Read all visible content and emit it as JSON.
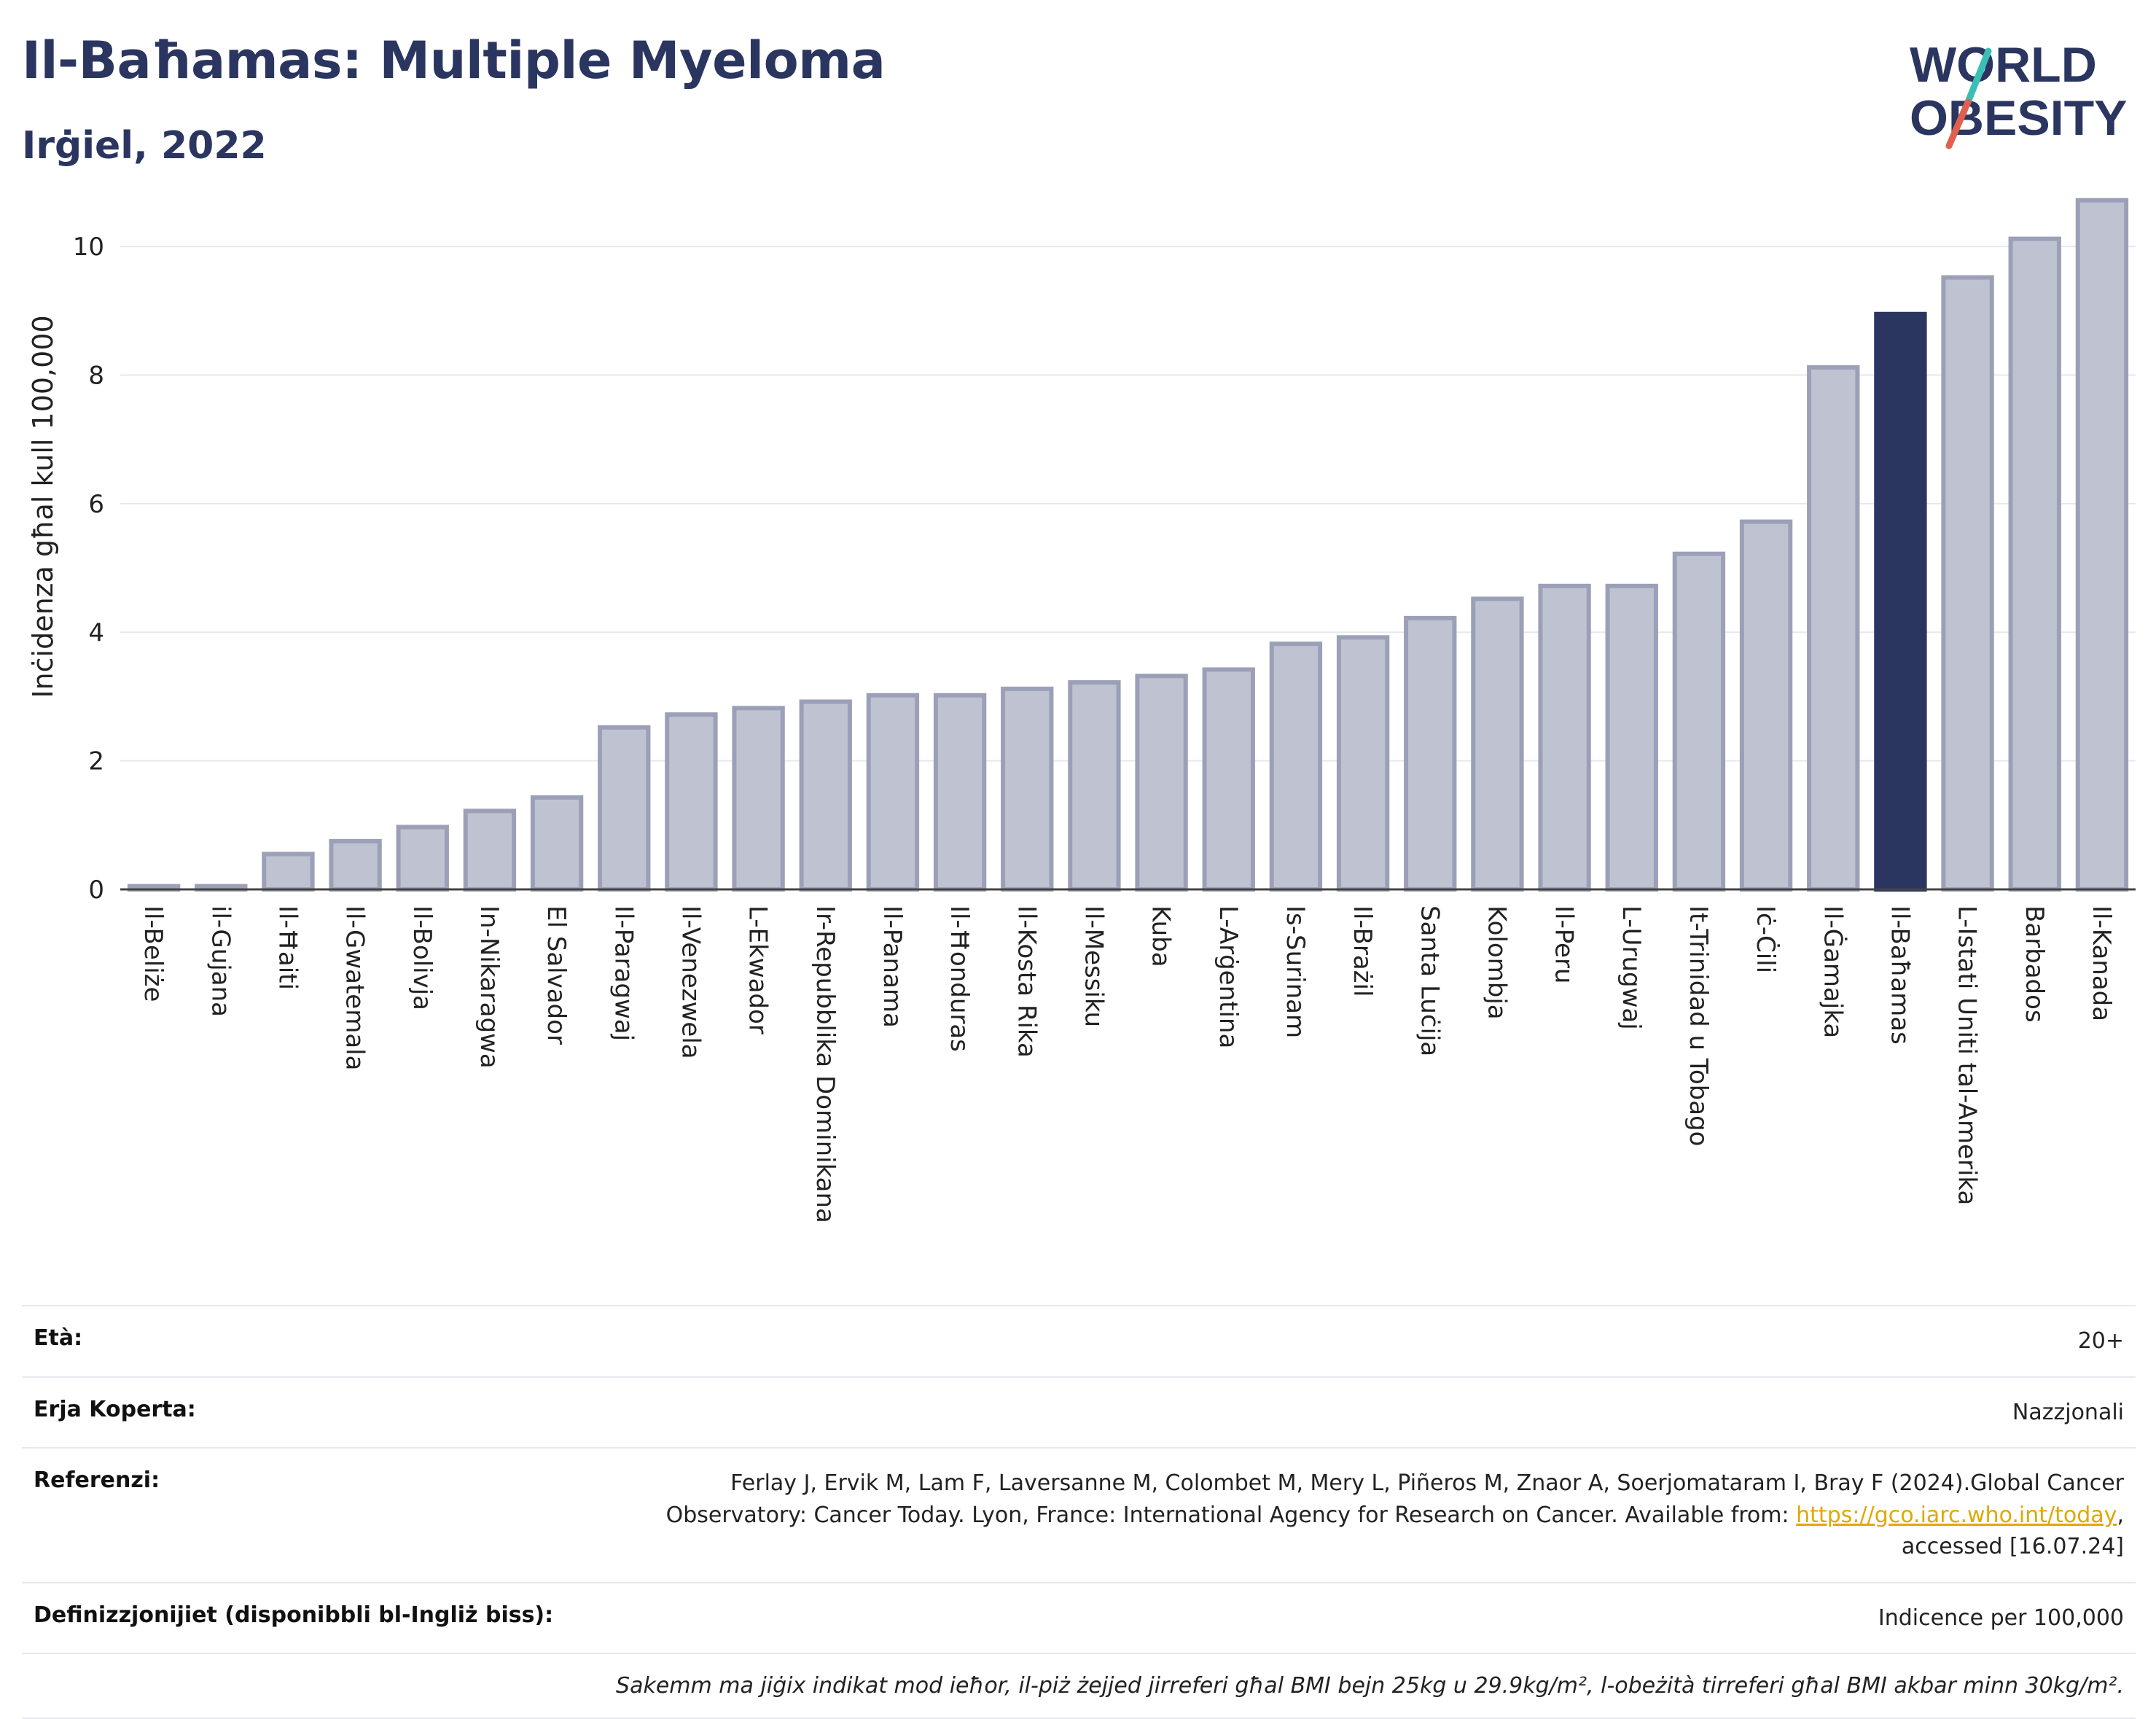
{
  "header": {
    "title": "Il-Baħamas: Multiple Myeloma",
    "subtitle": "Irġiel, 2022"
  },
  "logo": {
    "line1": "WORLD",
    "line2": "OBESITY",
    "colors": {
      "text": "#2a3560",
      "slash_teal": "#3bbfb4",
      "slash_red": "#e0604f"
    }
  },
  "chart_data": {
    "type": "bar",
    "ylabel": "Inċidenza għal kull 100,000",
    "ylim": [
      0,
      11
    ],
    "yticks": [
      0,
      2,
      4,
      6,
      8,
      10
    ],
    "grid": true,
    "highlight": "Il-Baħamas",
    "colors": {
      "bar": "#bfc2d1",
      "bar_border": "#9ba0b8",
      "highlight": "#2a3560"
    },
    "categories": [
      "Il-Beliże",
      "il-Gujana",
      "Il-Ħaiti",
      "Il-Gwatemala",
      "Il-Bolivja",
      "In-Nikaragwa",
      "El Salvador",
      "Il-Paragwaj",
      "Il-Venezwela",
      "L-Ekwador",
      "Ir-Repubblika Dominikana",
      "Il-Panama",
      "Il-Ħonduras",
      "Il-Kosta Rika",
      "Il-Messiku",
      "Kuba",
      "L-Arġentina",
      "Is-Surinam",
      "Il-Brażil",
      "Santa Luċija",
      "Kolombja",
      "Il-Peru",
      "L-Urugwaj",
      "It-Trinidad u Tobago",
      "Iċ-Ċili",
      "Il-Ġamajka",
      "Il-Baħamas",
      "L-Istati Uniti tal-Amerika",
      "Barbados",
      "Il-Kanada"
    ],
    "values": [
      0.05,
      0.05,
      0.55,
      0.75,
      0.97,
      1.22,
      1.43,
      2.52,
      2.72,
      2.82,
      2.92,
      3.02,
      3.02,
      3.12,
      3.22,
      3.32,
      3.42,
      3.82,
      3.92,
      4.22,
      4.52,
      4.72,
      4.72,
      5.22,
      5.72,
      8.12,
      8.95,
      9.52,
      10.12,
      10.72
    ]
  },
  "info": {
    "rows": [
      {
        "label": "Età:",
        "value": "20+"
      },
      {
        "label": "Erja Koperta:",
        "value": "Nazzjonali"
      },
      {
        "label": "Referenzi:",
        "value_pre": "Ferlay J, Ervik M, Lam F, Laversanne M, Colombet M, Mery L, Piñeros M, Znaor A, Soerjomataram I, Bray F (2024).Global Cancer Observatory: Cancer Today. Lyon, France: International Agency for Research on Cancer. Available from: ",
        "link": "https://gco.iarc.who.int/today",
        "value_post": ", accessed [16.07.24]"
      },
      {
        "label": "Definizzjonijiet (disponibbli bl-Ingliż biss):",
        "value": "Indicence per 100,000"
      }
    ],
    "note": "Sakemm ma jiġix indikat mod ieħor, il-piż żejjed jirreferi għal BMI bejn 25kg u 29.9kg/m², l-obeżità tirreferi għal BMI akbar minn 30kg/m²."
  }
}
